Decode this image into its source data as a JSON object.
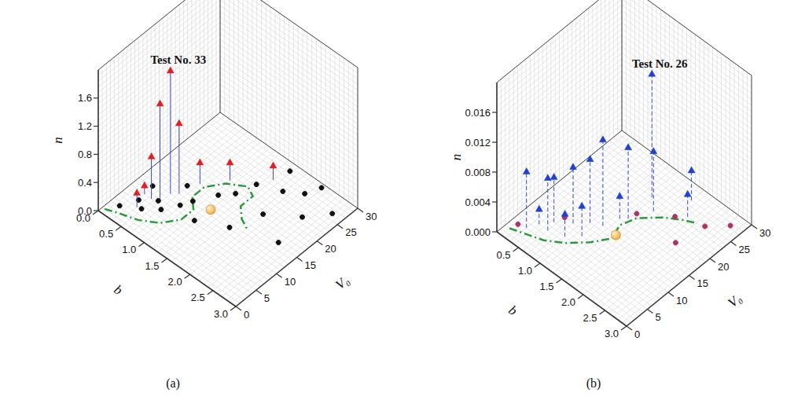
{
  "chart_data": [
    {
      "type": "scatter",
      "title": "(a)",
      "xlabel": "b",
      "ylabel": "V₀",
      "zlabel": "n",
      "xlim": [
        0,
        3
      ],
      "xticks": [
        {
          "value": 0,
          "label": "0.0"
        },
        0.5,
        {
          "value": 1,
          "label": "1.0"
        },
        1.5,
        {
          "value": 2,
          "label": "2.0"
        },
        2.5,
        {
          "value": 3,
          "label": "3.0"
        }
      ],
      "ylim": [
        0,
        30
      ],
      "yticks": [
        0,
        5,
        10,
        15,
        20,
        25,
        30
      ],
      "zlim": [
        0,
        2
      ],
      "zticks": [
        {
          "value": 0,
          "label": "0.0"
        },
        0.4,
        0.8,
        1.2,
        1.6
      ],
      "grid": true,
      "annotations": [
        {
          "text": "Test No. 33",
          "point": [
            0.6,
            11,
            1.75
          ]
        }
      ],
      "series": [
        {
          "type": "line",
          "color": "#2a9a3a",
          "line_style": "dashdot",
          "values": [
            [
              0.05,
              1
            ],
            [
              0.3,
              2
            ],
            [
              0.6,
              3
            ],
            [
              0.9,
              5
            ],
            [
              1.1,
              8
            ],
            [
              1.1,
              11
            ],
            [
              0.9,
              13
            ],
            [
              0.9,
              16
            ],
            [
              1.1,
              19
            ],
            [
              1.4,
              21
            ],
            [
              1.6,
              20
            ],
            [
              1.6,
              17
            ],
            [
              1.8,
              15
            ],
            [
              2.0,
              14
            ]
          ]
        },
        {
          "type": "scatter",
          "color": "#111111",
          "marker": "circle",
          "values": [
            [
              0.2,
              3,
              0.02
            ],
            [
              0.35,
              6,
              0.03
            ],
            [
              0.5,
              5,
              0.02
            ],
            [
              0.6,
              8,
              0.04
            ],
            [
              0.75,
              7,
              0.03
            ],
            [
              0.9,
              10,
              0.02
            ],
            [
              1.0,
              12,
              0.03
            ],
            [
              1.2,
              16,
              0.02
            ],
            [
              1.4,
              18,
              0.04
            ],
            [
              1.5,
              22,
              0.03
            ],
            [
              1.9,
              24,
              0.02
            ],
            [
              2.2,
              26,
              0.03
            ],
            [
              2.5,
              22,
              0.02
            ],
            [
              2.8,
              26,
              0.02
            ],
            [
              2.0,
              18,
              0.02
            ],
            [
              2.6,
              15,
              0.03
            ],
            [
              1.8,
              12,
              0.02
            ],
            [
              1.3,
              9,
              0.03
            ],
            [
              0.3,
              10,
              0.02
            ],
            [
              0.7,
              14,
              0.02
            ],
            [
              1.7,
              28,
              0.03
            ],
            [
              2.3,
              29,
              0.02
            ]
          ]
        },
        {
          "type": "scatter",
          "color": "#e02020",
          "marker": "triangle",
          "line_style": "solid",
          "values": [
            [
              0.6,
              11,
              1.75
            ],
            [
              0.55,
              9,
              1.35
            ],
            [
              0.7,
              12,
              1.0
            ],
            [
              0.45,
              8,
              0.6
            ],
            [
              0.8,
              16,
              0.3
            ],
            [
              1.1,
              20,
              0.25
            ],
            [
              0.4,
              5,
              0.2
            ],
            [
              0.3,
              8,
              0.12
            ],
            [
              1.6,
              25,
              0.2
            ]
          ]
        },
        {
          "type": "scatter",
          "color": "#f0a030",
          "marker": "sphere",
          "values": [
            [
              1.3,
              13,
              0
            ]
          ]
        }
      ]
    },
    {
      "type": "scatter",
      "title": "(b)",
      "xlabel": "b",
      "ylabel": "V₀",
      "zlabel": "n",
      "xlim": [
        0,
        3
      ],
      "xticks": [
        {
          "value": 0.5,
          "label": "0.5"
        },
        {
          "value": 1,
          "label": "1.0"
        },
        1.5,
        {
          "value": 2,
          "label": "2.0"
        },
        2.5,
        {
          "value": 3,
          "label": "3.0"
        }
      ],
      "ylim": [
        0,
        30
      ],
      "yticks": [
        0,
        5,
        10,
        15,
        20,
        25,
        30
      ],
      "zlim": [
        0,
        0.02
      ],
      "zticks": [
        {
          "value": 0,
          "label": "0.000"
        },
        0.004,
        0.008,
        0.012,
        0.016
      ],
      "grid": true,
      "annotations": [
        {
          "text": "Test No. 26",
          "point": [
            1.37,
            23,
            0.0165
          ]
        }
      ],
      "series": [
        {
          "type": "line",
          "color": "#2a9a3a",
          "line_style": "dashdot",
          "values": [
            [
              0.1,
              2
            ],
            [
              0.4,
              3
            ],
            [
              0.7,
              4
            ],
            [
              1.0,
              6
            ],
            [
              1.3,
              9
            ],
            [
              1.5,
              12
            ],
            [
              1.4,
              15
            ],
            [
              1.5,
              18
            ],
            [
              1.8,
              21
            ],
            [
              2.1,
              23
            ],
            [
              2.3,
              24
            ]
          ]
        },
        {
          "type": "scatter",
          "color": "#b0306a",
          "marker": "circle",
          "values": [
            [
              0.2,
              3,
              0.0005
            ],
            [
              0.7,
              9,
              0.0008
            ],
            [
              1.5,
              18,
              0.0006
            ],
            [
              2.0,
              22,
              0.0005
            ],
            [
              2.5,
              24,
              0.0004
            ],
            [
              2.8,
              27,
              0.0004
            ],
            [
              2.4,
              18,
              0.0005
            ]
          ]
        },
        {
          "type": "scatter",
          "color": "#2040d0",
          "marker": "triangle",
          "line_style": "dashed",
          "values": [
            [
              1.37,
              23,
              0.0165
            ],
            [
              0.3,
              4,
              0.0075
            ],
            [
              0.55,
              8,
              0.006
            ],
            [
              0.6,
              6,
              0.007
            ],
            [
              0.8,
              10,
              0.0075
            ],
            [
              1.0,
              12,
              0.0085
            ],
            [
              1.2,
              13,
              0.0115
            ],
            [
              1.1,
              9,
              0.004
            ],
            [
              0.9,
              7,
              0.003
            ],
            [
              1.4,
              17,
              0.0095
            ],
            [
              1.6,
              21,
              0.008
            ],
            [
              1.9,
              27,
              0.004
            ],
            [
              2.1,
              24,
              0.003
            ],
            [
              0.4,
              6,
              0.002
            ],
            [
              1.3,
              16,
              0.003
            ]
          ]
        },
        {
          "type": "scatter",
          "color": "#f0a030",
          "marker": "sphere",
          "values": [
            [
              1.5,
              13,
              0
            ]
          ]
        }
      ]
    }
  ]
}
